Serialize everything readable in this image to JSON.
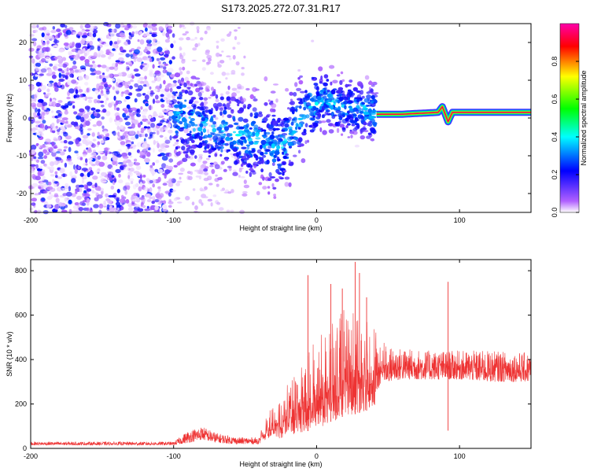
{
  "title": "S173.2025.272.07.31.R17",
  "chart_data": [
    {
      "type": "heatmap",
      "name": "spectrogram",
      "xlabel": "Height of straight line (km)",
      "ylabel": "Frequency (Hz)",
      "xlim": [
        -200,
        150
      ],
      "ylim": [
        -25,
        25
      ],
      "xticks": [
        -200,
        -100,
        0,
        100
      ],
      "xtick_labels": [
        "-200",
        "-100",
        "0",
        "100"
      ],
      "yticks": [
        -20,
        -10,
        0,
        10,
        20
      ],
      "ytick_labels": [
        "-20",
        "-10",
        "0",
        "10",
        "20"
      ],
      "colorbar": {
        "label": "Normalized spectral amplitude",
        "range": [
          0,
          1
        ],
        "ticks": [
          0.0,
          0.2,
          0.4,
          0.6,
          0.8
        ],
        "tick_labels": [
          "0.0",
          "0.2",
          "0.4",
          "0.6",
          "0.8"
        ],
        "colormap": [
          "#ffffff",
          "#b060ff",
          "#0000ff",
          "#00ffff",
          "#00ff00",
          "#ffff00",
          "#ff0000",
          "#ff00ff"
        ]
      },
      "tone_track": {
        "x": [
          42,
          60,
          85,
          88,
          90,
          92,
          95,
          150
        ],
        "y": [
          1,
          1,
          1.5,
          3,
          1,
          -1,
          1.5,
          1.5
        ],
        "peak_amplitude": 0.9
      },
      "scatter_ridge": {
        "x": [
          -100,
          -80,
          -60,
          -45,
          -35,
          -25,
          -15,
          -5,
          5,
          20,
          35,
          42
        ],
        "y": [
          1,
          -2,
          -4,
          -5,
          -6,
          -8,
          -2,
          3,
          5,
          3,
          2,
          1
        ]
      },
      "noise_region_x": [
        -200,
        -100
      ]
    },
    {
      "type": "line",
      "name": "snr",
      "xlabel": "Height of straight line (km)",
      "ylabel": "SNR (10 * v/v)",
      "xlim": [
        -200,
        150
      ],
      "ylim": [
        0,
        850
      ],
      "xticks": [
        -200,
        -100,
        0,
        100
      ],
      "xtick_labels": [
        "-200",
        "-100",
        "0",
        "100"
      ],
      "yticks": [
        0,
        200,
        400,
        600,
        800
      ],
      "ytick_labels": [
        "0",
        "200",
        "400",
        "600",
        "800"
      ],
      "color": "#ee3333",
      "envelope": {
        "x": [
          -200,
          -100,
          -90,
          -80,
          -70,
          -55,
          -40,
          -38,
          -35,
          -30,
          -25,
          -20,
          -15,
          -10,
          -5,
          0,
          5,
          10,
          15,
          20,
          25,
          30,
          35,
          40,
          45,
          50,
          60,
          80,
          100,
          120,
          150
        ],
        "low": [
          15,
          15,
          25,
          40,
          25,
          20,
          20,
          40,
          40,
          60,
          40,
          80,
          60,
          70,
          80,
          90,
          100,
          120,
          130,
          150,
          150,
          160,
          170,
          180,
          300,
          300,
          310,
          310,
          310,
          300,
          300
        ],
        "high": [
          30,
          30,
          80,
          100,
          70,
          50,
          50,
          100,
          150,
          200,
          250,
          300,
          350,
          400,
          450,
          500,
          520,
          550,
          600,
          650,
          700,
          650,
          600,
          550,
          500,
          460,
          450,
          440,
          440,
          440,
          430
        ]
      },
      "spikes": [
        {
          "x": -6,
          "y": 780
        },
        {
          "x": 10,
          "y": 740
        },
        {
          "x": 18,
          "y": 720
        },
        {
          "x": 27,
          "y": 840
        },
        {
          "x": 30,
          "y": 790
        },
        {
          "x": 35,
          "y": 680
        },
        {
          "x": 92,
          "y": 750
        }
      ],
      "dips": [
        {
          "x": 92,
          "y": 80
        }
      ]
    }
  ]
}
